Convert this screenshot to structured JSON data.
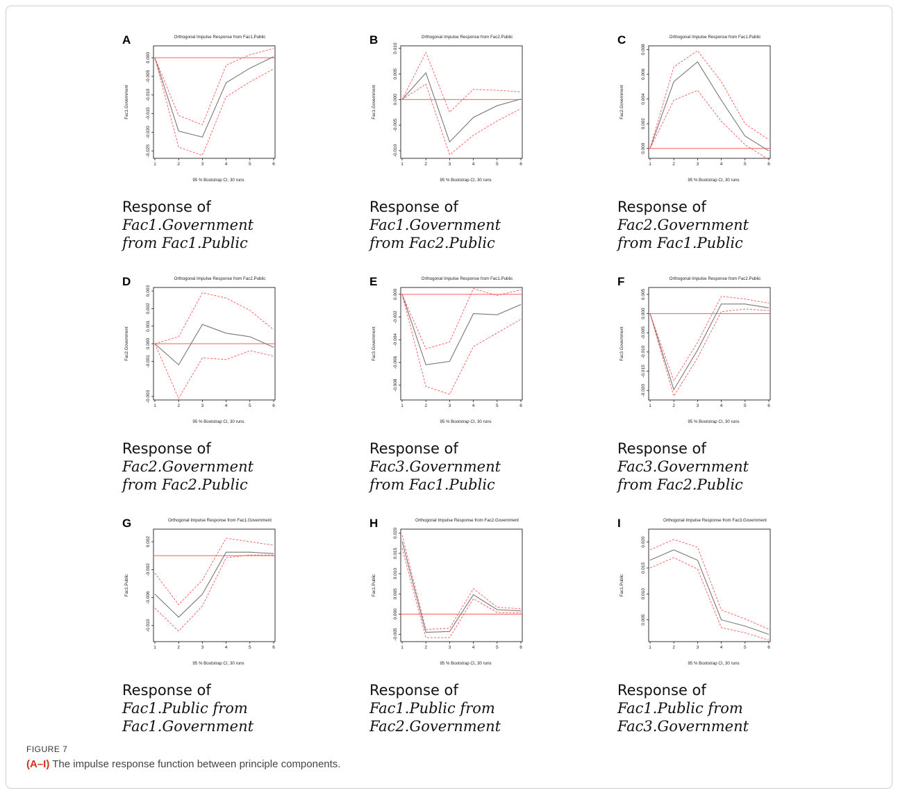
{
  "figure": {
    "label": "FIGURE 7",
    "caption_bold": "(A–I)",
    "caption_text": " The impulse response function between principle components."
  },
  "colors": {
    "response": "#777777",
    "ci": "#ff5555",
    "zero_line": "#ff5a5a",
    "frame": "#000000"
  },
  "chart_data": [
    {
      "id": "A",
      "type": "line",
      "title": "Orthogonal Impulse Response from Fac1.Public",
      "ylabel": "Fac1.Government",
      "xlabel": "95 % Bootstrap CI, 30 runs",
      "caption": [
        "Response of",
        "Fac1.Government",
        "from  Fac1.Public"
      ],
      "x": [
        1,
        2,
        3,
        4,
        5,
        6
      ],
      "xlim": [
        1,
        6
      ],
      "ylim": [
        -0.027,
        0.0032
      ],
      "yticks": [
        0.0,
        -0.005,
        -0.01,
        -0.015,
        -0.02,
        -0.025
      ],
      "yticklabels": [
        "0.000",
        "-0.005",
        "-0.010",
        "-0.015",
        "-0.020",
        "-0.025"
      ],
      "zero": 0,
      "series": [
        {
          "role": "response",
          "values": [
            0,
            -0.0197,
            -0.0213,
            -0.0067,
            -0.0028,
            0.0003
          ]
        },
        {
          "role": "upper",
          "values": [
            0,
            -0.0155,
            -0.018,
            -0.002,
            0.0008,
            0.0025
          ]
        },
        {
          "role": "lower",
          "values": [
            0,
            -0.024,
            -0.0262,
            -0.0105,
            -0.0065,
            -0.003
          ]
        }
      ]
    },
    {
      "id": "B",
      "type": "line",
      "title": "Orthogonal Impulse Response from Fac2.Public",
      "ylabel": "Fac1.Government",
      "xlabel": "95 % Bootstrap CI, 30 runs",
      "caption": [
        "Response of",
        "Fac1.Government",
        "from  Fac2.Public"
      ],
      "x": [
        1,
        2,
        3,
        4,
        5,
        6
      ],
      "xlim": [
        1,
        6
      ],
      "ylim": [
        -0.0115,
        0.0105
      ],
      "yticks": [
        0.01,
        0.005,
        0.0,
        -0.005,
        -0.01
      ],
      "yticklabels": [
        "0.010",
        "0.005",
        "0.000",
        "-0.005",
        "-0.010"
      ],
      "zero": 0,
      "series": [
        {
          "role": "response",
          "values": [
            0,
            0.0052,
            -0.0083,
            -0.0035,
            -0.0012,
            0.0001
          ]
        },
        {
          "role": "upper",
          "values": [
            0,
            0.0092,
            -0.0025,
            0.002,
            0.0018,
            0.0015
          ]
        },
        {
          "role": "lower",
          "values": [
            0,
            0.003,
            -0.0108,
            -0.007,
            -0.0042,
            -0.0018
          ]
        }
      ]
    },
    {
      "id": "C",
      "type": "line",
      "title": "Orthogonal Impulse Response from Fac1.Public",
      "ylabel": "Fac2.Government",
      "xlabel": "95 % Bootstrap CI, 30 runs",
      "caption": [
        "Response of",
        "Fac2.Government",
        "from  Fac1.Public"
      ],
      "x": [
        1,
        2,
        3,
        4,
        5,
        6
      ],
      "xlim": [
        1,
        6
      ],
      "ylim": [
        -0.0008,
        0.0083
      ],
      "yticks": [
        0.008,
        0.006,
        0.004,
        0.002,
        0.0
      ],
      "yticklabels": [
        "0.008",
        "0.006",
        "0.004",
        "0.002",
        "0.000"
      ],
      "zero": 0,
      "series": [
        {
          "role": "response",
          "values": [
            0,
            0.0054,
            0.007,
            0.0039,
            0.001,
            -0.0002
          ]
        },
        {
          "role": "upper",
          "values": [
            0,
            0.0066,
            0.0079,
            0.0054,
            0.002,
            0.0007
          ]
        },
        {
          "role": "lower",
          "values": [
            0,
            0.0039,
            0.0047,
            0.0022,
            0.0003,
            -0.0009
          ]
        }
      ]
    },
    {
      "id": "D",
      "type": "line",
      "title": "Orthogonal Impulse Response from Fac2.Public",
      "ylabel": "Fac2.Government",
      "xlabel": "95 % Bootstrap CI, 30 runs",
      "caption": [
        "Response of",
        "Fac2.Government",
        "from  Fac2.Public"
      ],
      "x": [
        1,
        2,
        3,
        4,
        5,
        6
      ],
      "xlim": [
        1,
        6
      ],
      "ylim": [
        -0.0032,
        0.0032
      ],
      "yticks": [
        0.003,
        0.002,
        0.001,
        0.0,
        -0.001,
        -0.003
      ],
      "yticklabels": [
        "0.003",
        "0.002",
        "0.001",
        "0.000",
        "-0.001",
        "-0.003"
      ],
      "zero": 0,
      "series": [
        {
          "role": "response",
          "values": [
            0,
            -0.0012,
            0.0011,
            0.0006,
            0.0004,
            -0.0002
          ]
        },
        {
          "role": "upper",
          "values": [
            0,
            0.0004,
            0.0029,
            0.0026,
            0.0019,
            0.0008
          ]
        },
        {
          "role": "lower",
          "values": [
            0,
            -0.0031,
            -0.0008,
            -0.0009,
            -0.0004,
            -0.0007
          ]
        }
      ]
    },
    {
      "id": "E",
      "type": "line",
      "title": "Orthogonal Impulse Response from Fac1.Public",
      "ylabel": "Fac3.Government",
      "xlabel": "95 % Bootstrap CI, 30 runs",
      "caption": [
        "Response of",
        "Fac3.Government",
        "from  Fac1.Public"
      ],
      "x": [
        1,
        2,
        3,
        4,
        5,
        6
      ],
      "xlim": [
        1,
        6
      ],
      "ylim": [
        -0.0093,
        0.0006
      ],
      "yticks": [
        0.0,
        -0.002,
        -0.004,
        -0.006,
        -0.008
      ],
      "yticklabels": [
        "0.000",
        "-0.002",
        "-0.004",
        "-0.006",
        "-0.008"
      ],
      "zero": 0,
      "series": [
        {
          "role": "response",
          "values": [
            0,
            -0.0062,
            -0.0059,
            -0.0017,
            -0.0018,
            -0.0009
          ]
        },
        {
          "role": "upper",
          "values": [
            0,
            -0.0048,
            -0.0042,
            0.0005,
            -0.0001,
            0.0004
          ]
        },
        {
          "role": "lower",
          "values": [
            0,
            -0.0081,
            -0.0088,
            -0.0046,
            -0.0034,
            -0.0022
          ]
        }
      ]
    },
    {
      "id": "F",
      "type": "line",
      "title": "Orthogonal Impulse Response from Fac2.Public",
      "ylabel": "Fac3.Government",
      "xlabel": "95 % Bootstrap CI, 30 runs",
      "caption": [
        "Response of",
        "Fac3.Government",
        "from  Fac2.Public"
      ],
      "x": [
        1,
        2,
        3,
        4,
        5,
        6
      ],
      "xlim": [
        1,
        6
      ],
      "ylim": [
        -0.0225,
        0.0068
      ],
      "yticks": [
        0.005,
        0.0,
        -0.005,
        -0.01,
        -0.015,
        -0.02
      ],
      "yticklabels": [
        "0.005",
        "0.000",
        "-0.005",
        "-0.010",
        "-0.015",
        "-0.020"
      ],
      "zero": 0,
      "series": [
        {
          "role": "response",
          "values": [
            0,
            -0.0198,
            -0.0095,
            0.0025,
            0.0025,
            0.0015
          ]
        },
        {
          "role": "upper",
          "values": [
            0,
            -0.0175,
            -0.0075,
            0.0045,
            0.0038,
            0.0027
          ]
        },
        {
          "role": "lower",
          "values": [
            0,
            -0.0215,
            -0.0115,
            0.0005,
            0.0012,
            0.0008
          ]
        }
      ]
    },
    {
      "id": "G",
      "type": "line",
      "title": "Orthogonal Impulse Response from Fac1.Government",
      "ylabel": "Fac1.Public",
      "xlabel": "95 % Bootstrap CI, 30 runs",
      "caption": [
        "Response of",
        "Fac1.Public  from",
        "Fac1.Government"
      ],
      "x": [
        1,
        2,
        3,
        4,
        5,
        6
      ],
      "xlim": [
        1,
        6
      ],
      "ylim": [
        -0.0123,
        0.0038
      ],
      "yticks": [
        0.002,
        -0.002,
        -0.006,
        -0.01
      ],
      "yticklabels": [
        "0.002",
        "-0.002",
        "-0.006",
        "-0.010"
      ],
      "zero": 0,
      "series": [
        {
          "role": "response",
          "values": [
            -0.0055,
            -0.0088,
            -0.0055,
            0.0005,
            0.0005,
            0.0003
          ]
        },
        {
          "role": "upper",
          "values": [
            -0.0025,
            -0.007,
            -0.0035,
            0.0025,
            0.002,
            0.0015
          ]
        },
        {
          "role": "lower",
          "values": [
            -0.0075,
            -0.0108,
            -0.0072,
            -0.0003,
            0.0001,
            0.0001
          ]
        }
      ]
    },
    {
      "id": "H",
      "type": "line",
      "title": "Orthogonal Impulse Response from Fac2.Government",
      "ylabel": "Fac1.Public",
      "xlabel": "95 % Bootstrap CI, 30 runs",
      "caption": [
        "Response of",
        "Fac1.Public  from",
        "Fac2.Government"
      ],
      "x": [
        1,
        2,
        3,
        4,
        5,
        6
      ],
      "xlim": [
        1,
        6
      ],
      "ylim": [
        -0.0068,
        0.021
      ],
      "yticks": [
        0.02,
        0.015,
        0.01,
        0.005,
        0.0,
        -0.005
      ],
      "yticklabels": [
        "0.020",
        "0.015",
        "0.010",
        "0.005",
        "0.000",
        "-0.005"
      ],
      "zero": 0,
      "series": [
        {
          "role": "response",
          "values": [
            0.018,
            -0.0045,
            -0.0043,
            0.0048,
            0.0011,
            0.0008
          ]
        },
        {
          "role": "upper",
          "values": [
            0.0195,
            -0.0038,
            -0.0035,
            0.0063,
            0.0017,
            0.0013
          ]
        },
        {
          "role": "lower",
          "values": [
            0.0163,
            -0.0058,
            -0.0058,
            0.0038,
            0.0004,
            0.0003
          ]
        }
      ]
    },
    {
      "id": "I",
      "type": "line",
      "title": "Orthogonal Impulse Response from Fac3.Government",
      "ylabel": "Fac1.Public",
      "xlabel": "95 % Bootstrap CI, 30 runs",
      "caption": [
        "Response of",
        "Fac1.Public  from",
        "Fac3.Government"
      ],
      "x": [
        1,
        2,
        3,
        4,
        5,
        6
      ],
      "xlim": [
        1,
        6
      ],
      "ylim": [
        0.0008,
        0.0225
      ],
      "yticks": [
        0.02,
        0.015,
        0.01,
        0.005
      ],
      "yticklabels": [
        "0.020",
        "0.015",
        "0.010",
        "0.005"
      ],
      "zero": null,
      "series": [
        {
          "role": "response",
          "values": [
            0.0165,
            0.0185,
            0.0165,
            0.005,
            0.0038,
            0.0022
          ]
        },
        {
          "role": "upper",
          "values": [
            0.0185,
            0.0205,
            0.019,
            0.0069,
            0.0052,
            0.0032
          ]
        },
        {
          "role": "lower",
          "values": [
            0.015,
            0.017,
            0.0148,
            0.0035,
            0.0025,
            0.0011
          ]
        }
      ]
    }
  ]
}
